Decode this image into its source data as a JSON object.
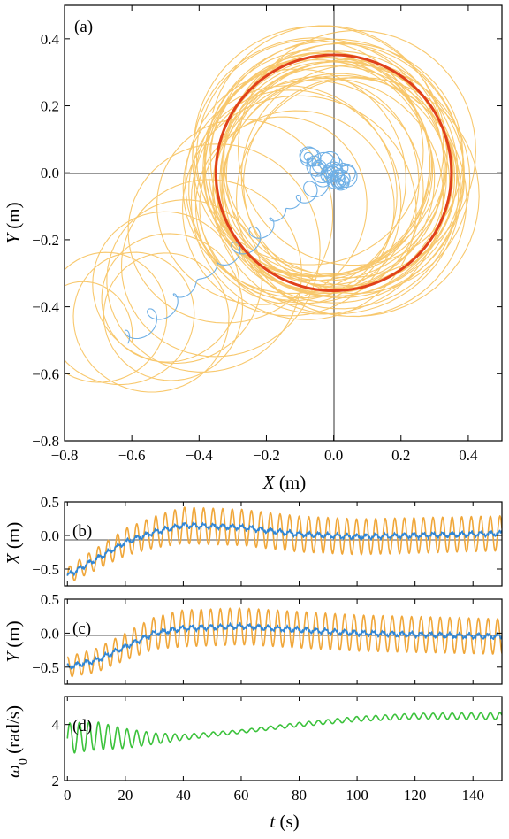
{
  "chart_data": [
    {
      "type": "line",
      "panel_label": "(a)",
      "xlabel_var": "X",
      "xlabel_unit": " (m)",
      "ylabel_var": "Y",
      "ylabel_unit": " (m)",
      "xlim": [
        -0.8,
        0.5
      ],
      "ylim": [
        -0.8,
        0.5
      ],
      "x_ticks": [
        -0.8,
        -0.6,
        -0.4,
        -0.2,
        0.0,
        0.2,
        0.4
      ],
      "y_ticks": [
        -0.8,
        -0.6,
        -0.4,
        -0.2,
        0.0,
        0.2,
        0.4
      ],
      "x_tick_labels": [
        "−0.8",
        "−0.6",
        "−0.4",
        "−0.2",
        "0.0",
        "0.2",
        "0.4"
      ],
      "y_tick_labels": [
        "−0.8",
        "−0.6",
        "−0.4",
        "−0.2",
        "0.0",
        "0.2",
        "0.4"
      ],
      "grid": false,
      "reference_circle": {
        "center": [
          0.0,
          0.0
        ],
        "radius": 0.35,
        "color": "#e0401a"
      },
      "series": [
        {
          "color": "#f5b53c",
          "trajectory": {
            "start": [
              -0.78,
              -0.56
            ],
            "end": [
              0.0,
              0.0
            ],
            "orbit_radius_start": 0.15,
            "orbit_radius_end": 0.35,
            "period_s": 3.3,
            "duration_s": 150
          }
        },
        {
          "color": "#6fb0e6",
          "trajectory": {
            "start": [
              -0.63,
              -0.51
            ],
            "end": [
              0.0,
              0.0
            ],
            "duration_s": 150
          }
        }
      ]
    },
    {
      "type": "line",
      "panel_label": "(b)",
      "ylabel_var": "X",
      "ylabel_unit": " (m)",
      "xlim": [
        -1,
        150
      ],
      "ylim": [
        -0.75,
        0.5
      ],
      "y_ticks": [
        -0.5,
        0.0,
        0.5
      ],
      "y_tick_labels": [
        "−0.5",
        "0.0",
        "0.5"
      ],
      "series": [
        {
          "color": "#f0a73a",
          "mean": {
            "t": [
              0,
              10,
              20,
              30,
              40,
              60,
              80,
              100,
              120,
              150
            ],
            "v": [
              -0.6,
              -0.35,
              -0.1,
              0.05,
              0.15,
              0.12,
              0.02,
              -0.02,
              0.0,
              0.03
            ]
          },
          "amplitude": {
            "t": [
              0,
              20,
              40,
              150
            ],
            "v": [
              0.12,
              0.2,
              0.27,
              0.26
            ]
          },
          "period_s": 3.3
        },
        {
          "color": "#2f86d6",
          "mean": {
            "t": [
              0,
              10,
              20,
              30,
              40,
              60,
              80,
              100,
              120,
              150
            ],
            "v": [
              -0.6,
              -0.35,
              -0.1,
              0.05,
              0.15,
              0.12,
              0.02,
              -0.02,
              0.0,
              0.03
            ]
          },
          "amplitude": {
            "t": [
              0,
              150
            ],
            "v": [
              0.03,
              0.03
            ]
          },
          "period_s": 3.3
        }
      ]
    },
    {
      "type": "line",
      "panel_label": "(c)",
      "ylabel_var": "Y",
      "ylabel_unit": " (m)",
      "xlim": [
        -1,
        150
      ],
      "ylim": [
        -0.75,
        0.5
      ],
      "y_ticks": [
        -0.5,
        0.0,
        0.5
      ],
      "y_tick_labels": [
        "−0.5",
        "0.0",
        "0.5"
      ],
      "series": [
        {
          "color": "#f0a73a",
          "mean": {
            "t": [
              0,
              10,
              20,
              30,
              40,
              60,
              80,
              100,
              120,
              150
            ],
            "v": [
              -0.5,
              -0.4,
              -0.2,
              0.0,
              0.07,
              0.1,
              0.05,
              0.0,
              -0.02,
              -0.05
            ]
          },
          "amplitude": {
            "t": [
              0,
              20,
              40,
              150
            ],
            "v": [
              0.15,
              0.2,
              0.27,
              0.26
            ]
          },
          "period_s": 3.3
        },
        {
          "color": "#2f86d6",
          "mean": {
            "t": [
              0,
              10,
              20,
              30,
              40,
              60,
              80,
              100,
              120,
              150
            ],
            "v": [
              -0.5,
              -0.4,
              -0.2,
              0.0,
              0.07,
              0.1,
              0.05,
              0.0,
              -0.02,
              -0.05
            ]
          },
          "amplitude": {
            "t": [
              0,
              150
            ],
            "v": [
              0.03,
              0.03
            ]
          },
          "period_s": 3.3
        }
      ]
    },
    {
      "type": "line",
      "panel_label": "(d)",
      "ylabel_var": "ω",
      "ylabel_sub": "0",
      "ylabel_unit": " (rad/s)",
      "xlabel_var": "t",
      "xlabel_unit": " (s)",
      "xlim": [
        -1,
        150
      ],
      "ylim": [
        2,
        5
      ],
      "y_ticks": [
        2,
        4
      ],
      "y_tick_labels": [
        "2",
        "4"
      ],
      "x_ticks": [
        0,
        20,
        40,
        60,
        80,
        100,
        120,
        140
      ],
      "x_tick_labels": [
        "0",
        "20",
        "40",
        "60",
        "80",
        "100",
        "120",
        "140"
      ],
      "series": [
        {
          "color": "#3cc23c",
          "mean": {
            "t": [
              0,
              10,
              20,
              30,
              40,
              60,
              80,
              100,
              120,
              150
            ],
            "v": [
              3.5,
              3.6,
              3.5,
              3.5,
              3.55,
              3.75,
              4.0,
              4.2,
              4.3,
              4.3
            ]
          },
          "amplitude": {
            "t": [
              0,
              10,
              20,
              30,
              40,
              60,
              150
            ],
            "v": [
              0.55,
              0.5,
              0.35,
              0.2,
              0.1,
              0.06,
              0.12
            ]
          },
          "period_s": 3.3
        }
      ]
    }
  ]
}
